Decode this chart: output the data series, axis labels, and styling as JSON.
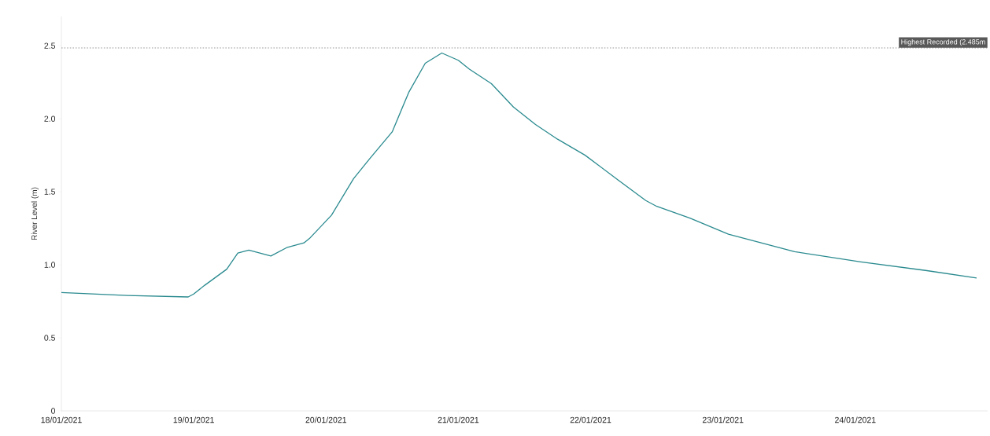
{
  "chart_data": {
    "type": "line",
    "ylabel": "River Level (m)",
    "x": [
      "2021-01-18T00:00",
      "2021-01-18T12:00",
      "2021-01-18T23:00",
      "2021-01-19T00:00",
      "2021-01-19T02:00",
      "2021-01-19T06:00",
      "2021-01-19T08:00",
      "2021-01-19T10:00",
      "2021-01-19T14:00",
      "2021-01-19T17:00",
      "2021-01-19T20:00",
      "2021-01-19T21:00",
      "2021-01-20T01:00",
      "2021-01-20T05:00",
      "2021-01-20T08:00",
      "2021-01-20T12:00",
      "2021-01-20T15:00",
      "2021-01-20T18:00",
      "2021-01-20T21:00",
      "2021-01-21T00:00",
      "2021-01-21T02:00",
      "2021-01-21T06:00",
      "2021-01-21T10:00",
      "2021-01-21T14:00",
      "2021-01-21T18:00",
      "2021-01-21T23:00",
      "2021-01-22T05:00",
      "2021-01-22T10:00",
      "2021-01-22T12:00",
      "2021-01-22T18:00",
      "2021-01-23T01:00",
      "2021-01-23T13:00",
      "2021-01-24T01:00",
      "2021-01-24T13:00",
      "2021-01-24T22:00"
    ],
    "values": [
      0.81,
      0.79,
      0.78,
      0.8,
      0.86,
      0.97,
      1.08,
      1.1,
      1.06,
      1.12,
      1.15,
      1.18,
      1.34,
      1.59,
      1.73,
      1.91,
      2.18,
      2.38,
      2.45,
      2.4,
      2.34,
      2.24,
      2.08,
      1.96,
      1.86,
      1.75,
      1.58,
      1.44,
      1.4,
      1.32,
      1.21,
      1.09,
      1.02,
      0.96,
      0.91
    ],
    "color": "#2a8a8f",
    "xlim": [
      "2021-01-18T00:00",
      "2021-01-25T00:00"
    ],
    "xticks": [
      {
        "value": "2021-01-18",
        "label": "18/01/2021"
      },
      {
        "value": "2021-01-19",
        "label": "19/01/2021"
      },
      {
        "value": "2021-01-20",
        "label": "20/01/2021"
      },
      {
        "value": "2021-01-21",
        "label": "21/01/2021"
      },
      {
        "value": "2021-01-22",
        "label": "22/01/2021"
      },
      {
        "value": "2021-01-23",
        "label": "23/01/2021"
      },
      {
        "value": "2021-01-24",
        "label": "24/01/2021"
      }
    ],
    "ylim": [
      0,
      2.7
    ],
    "yticks": [
      0,
      0.5,
      {
        "value": 1,
        "label": "1.0"
      },
      1.5,
      {
        "value": 2,
        "label": "2.0"
      },
      2.5
    ],
    "ref_lines": [
      {
        "axis": "y",
        "value": 2.485,
        "label": "Highest Recorded (2.485m",
        "color": "#bbbbbb",
        "line_style": "dotted"
      }
    ]
  }
}
